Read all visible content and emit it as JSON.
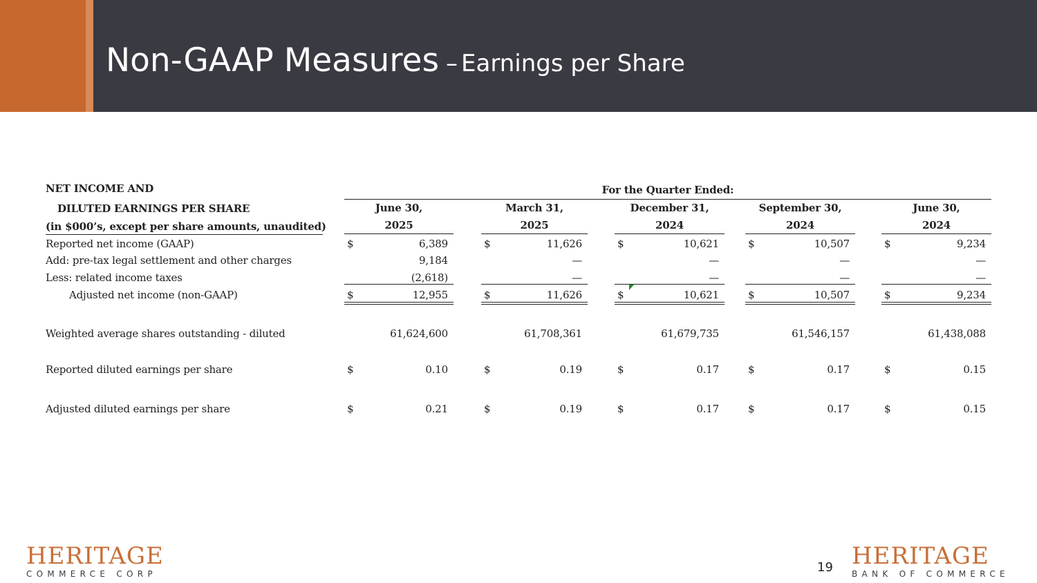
{
  "slide": {
    "title_main": "Non-GAAP Measures",
    "title_dash": "–",
    "title_sub": "Earnings per Share",
    "page_number": "19"
  },
  "table": {
    "header": {
      "line1": "NET INCOME AND",
      "line2": "DILUTED EARNINGS PER SHARE",
      "line3": "(in $000’s, except per share amounts, unaudited)",
      "period_title": "For the Quarter Ended:"
    },
    "columns": [
      {
        "date": "June 30,",
        "year": "2025"
      },
      {
        "date": "March 31,",
        "year": "2025"
      },
      {
        "date": "December 31,",
        "year": "2024"
      },
      {
        "date": "September 30,",
        "year": "2024"
      },
      {
        "date": "June 30,",
        "year": "2024"
      }
    ],
    "rows": [
      {
        "label": "Reported net income (GAAP)",
        "dollar": [
          "$",
          "$",
          "$",
          "$",
          "$"
        ],
        "values": [
          "6,389",
          "11,626",
          "10,621",
          "10,507",
          "9,234"
        ]
      },
      {
        "label": "Add: pre-tax legal settlement and other charges",
        "dollar": [
          "",
          "",
          "",
          "",
          ""
        ],
        "values": [
          "9,184",
          "—",
          "—",
          "—",
          "—"
        ]
      },
      {
        "label": "Less: related income taxes",
        "dollar": [
          "",
          "",
          "",
          "",
          ""
        ],
        "values": [
          "(2,618)",
          "—",
          "—",
          "—",
          "—"
        ]
      },
      {
        "label": "Adjusted net income (non-GAAP)",
        "dollar": [
          "$",
          "$",
          "$",
          "$",
          "$"
        ],
        "values": [
          "12,955",
          "11,626",
          "10,621",
          "10,507",
          "9,234"
        ]
      },
      {
        "label": "Weighted average shares outstanding - diluted",
        "dollar": [
          "",
          "",
          "",
          "",
          ""
        ],
        "values": [
          "61,624,600",
          "61,708,361",
          "61,679,735",
          "61,546,157",
          "61,438,088"
        ]
      },
      {
        "label": "Reported diluted earnings per share",
        "dollar": [
          "$",
          "$",
          "$",
          "$",
          "$"
        ],
        "values": [
          "0.10",
          "0.19",
          "0.17",
          "0.17",
          "0.15"
        ]
      },
      {
        "label": "Adjusted diluted earnings per share",
        "dollar": [
          "$",
          "$",
          "$",
          "$",
          "$"
        ],
        "values": [
          "0.21",
          "0.19",
          "0.17",
          "0.17",
          "0.15"
        ]
      }
    ]
  },
  "logos": {
    "left": {
      "name": "HERITAGE",
      "sub": "COMMERCE CORP"
    },
    "right": {
      "name": "HERITAGE",
      "sub": "BANK OF COMMERCE"
    }
  },
  "colors": {
    "header_bg": "#3a3a42",
    "accent": "#c7682e",
    "logo": "#c86f38"
  }
}
